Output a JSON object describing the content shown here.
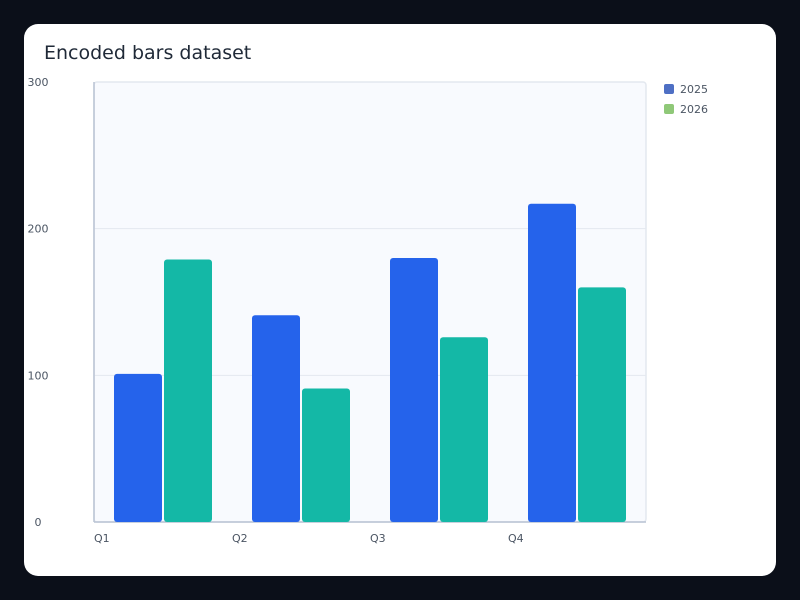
{
  "chart_data": {
    "type": "bar",
    "title": "Encoded bars dataset",
    "xlabel": "",
    "ylabel": "",
    "categories": [
      "Q1",
      "Q2",
      "Q3",
      "Q4"
    ],
    "series": [
      {
        "name": "2025",
        "values": [
          101,
          141,
          180,
          217
        ],
        "bar_color": "#2563eb",
        "legend_color": "#4e6fc4"
      },
      {
        "name": "2026",
        "values": [
          179,
          91,
          126,
          160
        ],
        "bar_color": "#14b8a6",
        "legend_color": "#8fc878"
      }
    ],
    "ylim": [
      0,
      300
    ],
    "yticks": [
      0,
      100,
      200,
      300
    ],
    "grid": true,
    "legend_position": "top-right",
    "plot_background": "#f8fafe",
    "grid_color": "#e3e8ef",
    "axis_color": "#b9c3d4",
    "tick_label_color": "#4b5563"
  }
}
